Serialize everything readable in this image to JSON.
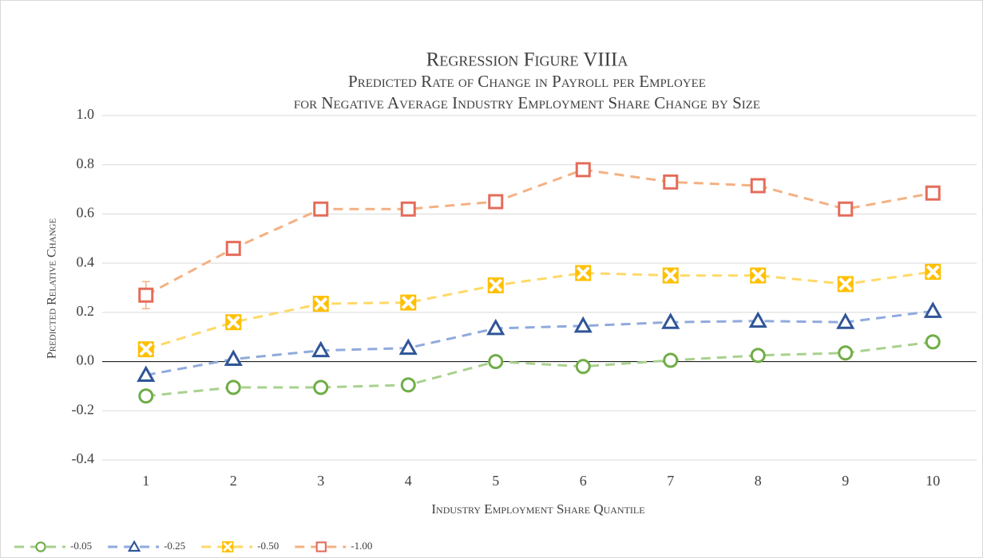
{
  "chart_data": {
    "type": "line",
    "title": "Regression Figure VIIIa",
    "subtitle": [
      "Predicted Rate of Change in Payroll per Employee",
      "for Negative Average Industry Employment Share Change by Size"
    ],
    "x_label": "Industry Employment Share Quantile",
    "y_label": "Predicted Relative Change",
    "categories": [
      1,
      2,
      3,
      4,
      5,
      6,
      7,
      8,
      9,
      10
    ],
    "ylim": [
      -0.4,
      1.0
    ],
    "yticks": [
      {
        "value": 1.0,
        "label": "1.0"
      },
      {
        "value": 0.8,
        "label": "0.8"
      },
      {
        "value": 0.6,
        "label": "0.6"
      },
      {
        "value": 0.4,
        "label": "0.4"
      },
      {
        "value": 0.2,
        "label": "0.2"
      },
      {
        "value": 0.0,
        "label": "0.0"
      },
      {
        "value": -0.2,
        "label": "-0.2"
      },
      {
        "value": -0.4,
        "label": "-0.4"
      }
    ],
    "grid": true,
    "legend": "bottom-left",
    "series": [
      {
        "name": "-0.05",
        "marker": "circle",
        "color": "#70ad47",
        "line_color": "#a9d18e",
        "values": [
          -0.14,
          -0.105,
          -0.105,
          -0.095,
          0.0,
          -0.02,
          0.005,
          0.025,
          0.035,
          0.08
        ]
      },
      {
        "name": "-0.25",
        "marker": "triangle",
        "color": "#2f5597",
        "line_color": "#8faadc",
        "values": [
          -0.055,
          0.01,
          0.045,
          0.055,
          0.135,
          0.145,
          0.16,
          0.165,
          0.16,
          0.205
        ]
      },
      {
        "name": "-0.50",
        "marker": "xbox",
        "color": "#ffc000",
        "line_color": "#ffd966",
        "values": [
          0.05,
          0.16,
          0.235,
          0.24,
          0.31,
          0.36,
          0.35,
          0.35,
          0.315,
          0.365
        ]
      },
      {
        "name": "-1.00",
        "marker": "square",
        "color": "#e46c5a",
        "line_color": "#f4b183",
        "values": [
          0.27,
          0.46,
          0.62,
          0.62,
          0.65,
          0.78,
          0.73,
          0.715,
          0.62,
          0.685
        ],
        "errors": [
          0.055,
          0.01,
          0.01,
          0.01,
          0.01,
          0.01,
          0.01,
          0.01,
          0.01,
          0.01
        ]
      }
    ]
  }
}
